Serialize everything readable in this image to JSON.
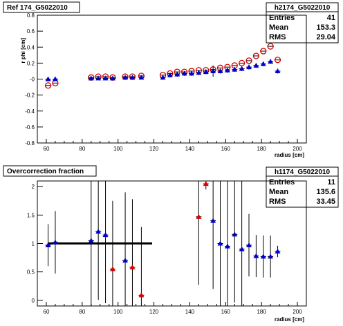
{
  "charts": [
    {
      "title": "Ref 174_G5022010",
      "stats": {
        "name": "h2174_G5022010",
        "rows": [
          [
            "Entries",
            "41"
          ],
          [
            "Mean",
            "153.3"
          ],
          [
            "RMS",
            "29.04"
          ]
        ]
      }
    },
    {
      "title": "Overcorrection fraction",
      "stats": {
        "name": "h1174_G5022010",
        "rows": [
          [
            "Entries",
            "11"
          ],
          [
            "Mean",
            "135.6"
          ],
          [
            "RMS",
            "33.45"
          ]
        ]
      }
    }
  ],
  "chart_data": [
    {
      "type": "scatter",
      "title": "Ref 174_G5022010",
      "xlabel": "radius [cm]",
      "ylabel": "r phi [cm]",
      "xlim": [
        55,
        205
      ],
      "ylim": [
        -0.8,
        0.8
      ],
      "xticks": [
        60,
        80,
        100,
        120,
        140,
        160,
        180,
        200
      ],
      "yticks": [
        -0.8,
        -0.6,
        -0.4,
        -0.2,
        0,
        0.2,
        0.4,
        0.6,
        0.8
      ],
      "ytick_labels": [
        "-0.8",
        "-0.6",
        "-0.4",
        "-0.2",
        "-0",
        "0.2",
        "0.4",
        "0.6",
        "0.8"
      ],
      "series": [
        {
          "marker": "open-circle",
          "color": "#cc0000",
          "x": [
            61,
            65,
            85,
            89,
            93,
            97,
            104,
            108,
            113,
            125,
            129,
            133,
            137,
            141,
            145,
            149,
            153,
            157,
            161,
            165,
            169,
            173,
            177,
            181,
            185,
            189
          ],
          "y": [
            -0.08,
            -0.05,
            0.02,
            0.03,
            0.03,
            0.02,
            0.03,
            0.03,
            0.04,
            0.05,
            0.07,
            0.09,
            0.09,
            0.1,
            0.11,
            0.11,
            0.12,
            0.14,
            0.15,
            0.17,
            0.2,
            0.23,
            0.29,
            0.35,
            0.41,
            0.24
          ]
        },
        {
          "marker": "filled-triangle",
          "color": "#0000cc",
          "x": [
            61,
            65,
            85,
            89,
            93,
            97,
            104,
            108,
            113,
            125,
            129,
            133,
            137,
            141,
            145,
            149,
            153,
            157,
            161,
            165,
            169,
            173,
            177,
            181,
            185,
            189
          ],
          "y": [
            0.0,
            0.0,
            0.01,
            0.01,
            0.01,
            0.01,
            0.02,
            0.02,
            0.02,
            0.02,
            0.05,
            0.06,
            0.07,
            0.07,
            0.08,
            0.09,
            0.1,
            0.1,
            0.11,
            0.12,
            0.13,
            0.15,
            0.17,
            0.19,
            0.22,
            0.1
          ],
          "err": [
            0.02,
            0.02,
            0.02,
            0.02,
            0.02,
            0.02,
            0.02,
            0.02,
            0.02,
            0.03,
            0.03,
            0.03,
            0.03,
            0.03,
            0.03,
            0.03,
            0.07,
            0.03,
            0.03,
            0.03,
            0.03,
            0.03,
            0.03,
            0.03,
            0.03,
            0.03
          ]
        }
      ]
    },
    {
      "type": "scatter",
      "title": "Overcorrection fraction",
      "xlabel": "radius [cm]",
      "ylabel": "",
      "xlim": [
        55,
        205
      ],
      "ylim": [
        -0.1,
        2.1
      ],
      "xticks": [
        60,
        80,
        100,
        120,
        140,
        160,
        180,
        200
      ],
      "yticks": [
        0,
        0.5,
        1,
        1.5,
        2
      ],
      "ytick_labels": [
        "0",
        "0.5",
        "1",
        "1.5",
        "2"
      ],
      "reference_line": {
        "x": [
          61,
          119
        ],
        "y": 1.0
      },
      "series": [
        {
          "marker": "filled-triangle",
          "color": "#0000cc",
          "x": [
            61,
            65,
            85,
            89,
            93,
            104,
            153,
            157,
            161,
            165,
            169,
            173,
            177,
            181,
            185,
            189
          ],
          "y": [
            0.97,
            1.02,
            1.05,
            1.21,
            1.15,
            0.7,
            1.4,
            1.0,
            0.95,
            1.16,
            0.9,
            0.97,
            0.78,
            0.77,
            0.77,
            0.86
          ],
          "err": [
            0.37,
            0.55,
            1.2,
            1.2,
            1.2,
            1.2,
            1.2,
            1.2,
            1.2,
            1.2,
            1.2,
            0.55,
            0.37,
            0.37,
            0.37,
            0.1
          ]
        },
        {
          "marker": "filled-triangle",
          "color": "#dd0000",
          "x": [
            97,
            108,
            113,
            145,
            149
          ],
          "y": [
            0.55,
            0.58,
            0.09,
            1.47,
            2.05
          ],
          "err": [
            1.2,
            1.2,
            1.2,
            1.2,
            0.1
          ]
        }
      ]
    }
  ]
}
